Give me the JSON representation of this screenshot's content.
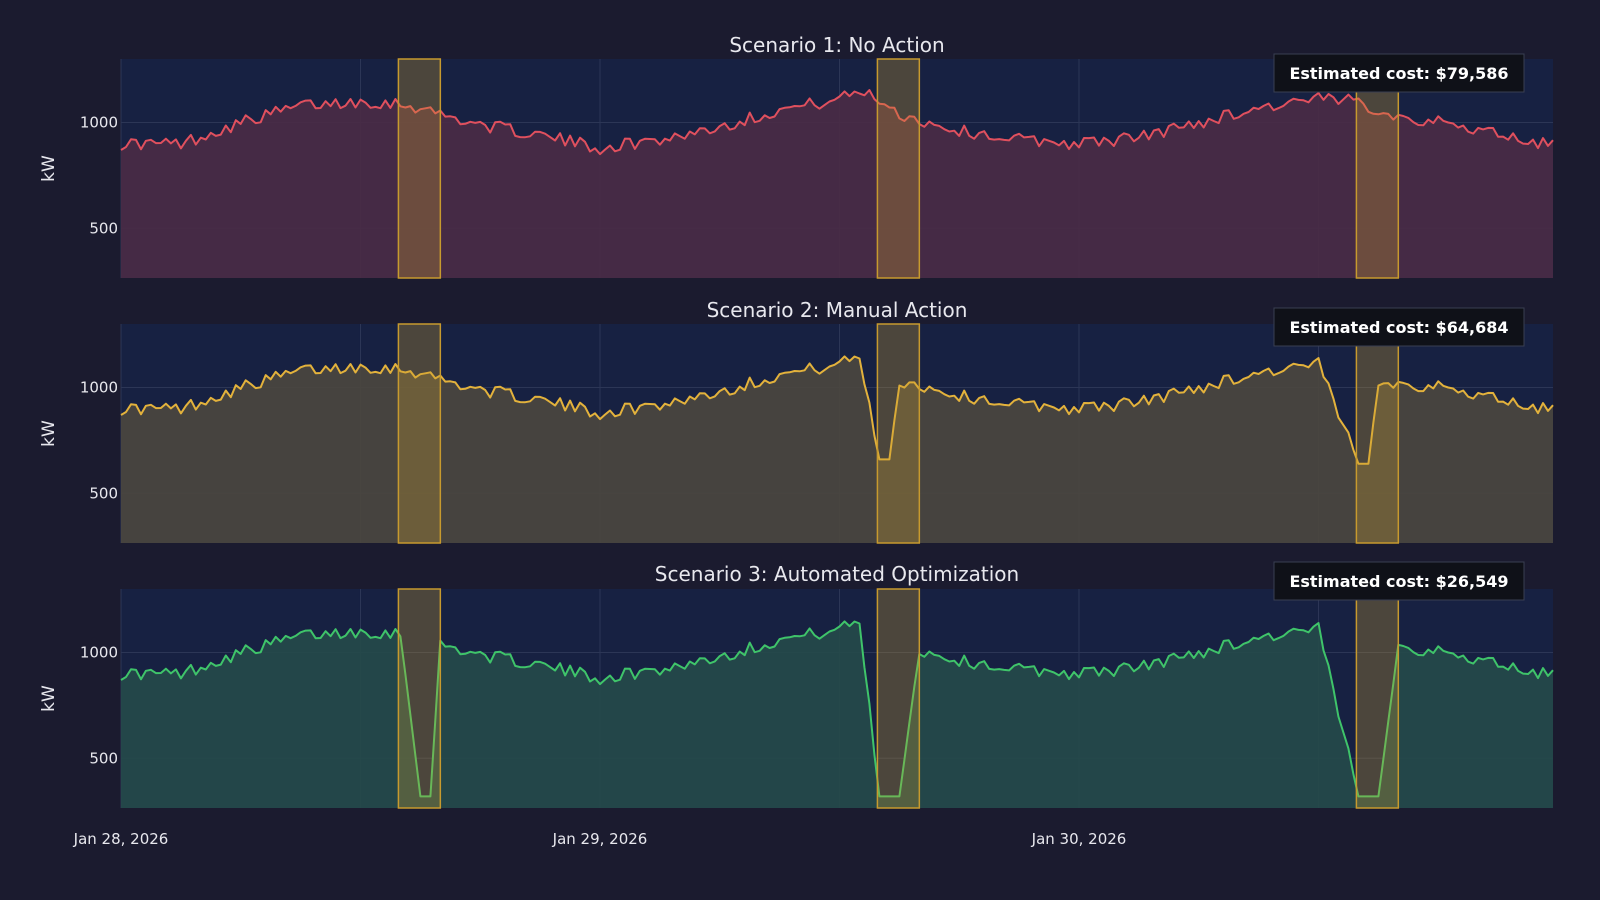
{
  "chart_data": [
    {
      "type": "area",
      "title": "Scenario 1: No Action",
      "ylabel": "kW",
      "ylim": [
        265,
        1300
      ],
      "yticks": [
        500,
        1000
      ],
      "color": "#e0505e",
      "fill": "#4a2b45",
      "annotation": "Estimated cost: $79,586",
      "series": [
        {
          "x": [
            "Jan 28, 2026 00:00",
            "Jan 28, 2026 03:00",
            "Jan 28, 2026 06:00",
            "Jan 28, 2026 09:00",
            "Jan 28, 2026 12:00",
            "Jan 28, 2026 14:00",
            "Jan 28, 2026 15:00",
            "Jan 28, 2026 16:00",
            "Jan 28, 2026 18:00",
            "Jan 28, 2026 21:00",
            "Jan 29, 2026 00:00",
            "Jan 29, 2026 03:00",
            "Jan 29, 2026 06:00",
            "Jan 29, 2026 09:00",
            "Jan 29, 2026 12:00",
            "Jan 29, 2026 13:00",
            "Jan 29, 2026 14:00",
            "Jan 29, 2026 15:00",
            "Jan 29, 2026 16:00",
            "Jan 29, 2026 18:00",
            "Jan 29, 2026 21:00",
            "Jan 30, 2026 00:00",
            "Jan 30, 2026 03:00",
            "Jan 30, 2026 06:00",
            "Jan 30, 2026 09:00",
            "Jan 30, 2026 12:00",
            "Jan 30, 2026 14:00",
            "Jan 30, 2026 15:00",
            "Jan 30, 2026 16:00",
            "Jan 30, 2026 18:00",
            "Jan 30, 2026 21:00",
            "Jan 30, 2026 23:00"
          ],
          "values": [
            900,
            900,
            1000,
            1080,
            1100,
            1090,
            1070,
            1040,
            990,
            940,
            880,
            920,
            980,
            1060,
            1110,
            1150,
            1110,
            1040,
            1010,
            960,
            920,
            900,
            930,
            1000,
            1070,
            1110,
            1100,
            1060,
            1030,
            1000,
            950,
            900
          ]
        }
      ]
    },
    {
      "type": "area",
      "title": "Scenario 2: Manual Action",
      "ylabel": "kW",
      "ylim": [
        265,
        1300
      ],
      "yticks": [
        500,
        1000
      ],
      "color": "#e3b23c",
      "fill": "#4b463f",
      "annotation": "Estimated cost: $64,684",
      "series": [
        {
          "x": [
            "Jan 28, 2026 00:00",
            "Jan 28, 2026 03:00",
            "Jan 28, 2026 06:00",
            "Jan 28, 2026 09:00",
            "Jan 28, 2026 12:00",
            "Jan 28, 2026 14:00",
            "Jan 28, 2026 15:00",
            "Jan 28, 2026 16:00",
            "Jan 28, 2026 18:00",
            "Jan 28, 2026 21:00",
            "Jan 29, 2026 00:00",
            "Jan 29, 2026 03:00",
            "Jan 29, 2026 06:00",
            "Jan 29, 2026 09:00",
            "Jan 29, 2026 12:00",
            "Jan 29, 2026 13:00",
            "Jan 29, 2026 14:00",
            "Jan 29, 2026 14:30",
            "Jan 29, 2026 15:00",
            "Jan 29, 2026 16:00",
            "Jan 29, 2026 18:00",
            "Jan 29, 2026 21:00",
            "Jan 30, 2026 00:00",
            "Jan 30, 2026 03:00",
            "Jan 30, 2026 06:00",
            "Jan 30, 2026 09:00",
            "Jan 30, 2026 12:00",
            "Jan 30, 2026 14:00",
            "Jan 30, 2026 14:30",
            "Jan 30, 2026 15:00",
            "Jan 30, 2026 16:00",
            "Jan 30, 2026 18:00",
            "Jan 30, 2026 21:00",
            "Jan 30, 2026 23:00"
          ],
          "values": [
            900,
            900,
            1000,
            1080,
            1100,
            1090,
            1070,
            1040,
            990,
            940,
            880,
            920,
            980,
            1060,
            1110,
            1150,
            660,
            660,
            1030,
            1010,
            960,
            920,
            900,
            930,
            1000,
            1070,
            1110,
            640,
            640,
            1030,
            1020,
            1000,
            950,
            900
          ]
        }
      ]
    },
    {
      "type": "area",
      "title": "Scenario 3: Automated Optimization",
      "ylabel": "kW",
      "ylim": [
        265,
        1300
      ],
      "yticks": [
        500,
        1000
      ],
      "color": "#3fc46a",
      "fill": "#254a4a",
      "annotation": "Estimated cost: $26,549",
      "series": [
        {
          "x": [
            "Jan 28, 2026 00:00",
            "Jan 28, 2026 03:00",
            "Jan 28, 2026 06:00",
            "Jan 28, 2026 09:00",
            "Jan 28, 2026 12:00",
            "Jan 28, 2026 14:00",
            "Jan 28, 2026 15:00",
            "Jan 28, 2026 15:30",
            "Jan 28, 2026 16:00",
            "Jan 28, 2026 18:00",
            "Jan 28, 2026 21:00",
            "Jan 29, 2026 00:00",
            "Jan 29, 2026 03:00",
            "Jan 29, 2026 06:00",
            "Jan 29, 2026 09:00",
            "Jan 29, 2026 12:00",
            "Jan 29, 2026 13:00",
            "Jan 29, 2026 14:00",
            "Jan 29, 2026 15:00",
            "Jan 29, 2026 16:00",
            "Jan 29, 2026 18:00",
            "Jan 29, 2026 21:00",
            "Jan 30, 2026 00:00",
            "Jan 30, 2026 03:00",
            "Jan 30, 2026 06:00",
            "Jan 30, 2026 09:00",
            "Jan 30, 2026 12:00",
            "Jan 30, 2026 14:00",
            "Jan 30, 2026 15:00",
            "Jan 30, 2026 16:00",
            "Jan 30, 2026 18:00",
            "Jan 30, 2026 21:00",
            "Jan 30, 2026 23:00"
          ],
          "values": [
            900,
            900,
            1000,
            1080,
            1100,
            1090,
            320,
            320,
            1040,
            990,
            940,
            880,
            920,
            980,
            1060,
            1110,
            1150,
            320,
            320,
            1010,
            960,
            920,
            900,
            930,
            1000,
            1070,
            1110,
            320,
            320,
            1030,
            1000,
            950,
            900
          ]
        }
      ]
    }
  ],
  "x_axis": {
    "range": [
      "Jan 28, 2026 00:00",
      "Jan 30, 2026 23:45"
    ],
    "tick_labels": [
      "Jan 28, 2026",
      "Jan 29, 2026",
      "Jan 30, 2026"
    ],
    "tick_values": [
      "Jan 28, 2026 00:00",
      "Jan 29, 2026 00:00",
      "Jan 30, 2026 00:00"
    ]
  },
  "highlight_windows": [
    [
      "Jan 28, 2026 14:00",
      "Jan 28, 2026 16:00"
    ],
    [
      "Jan 29, 2026 14:00",
      "Jan 29, 2026 16:00"
    ],
    [
      "Jan 30, 2026 14:00",
      "Jan 30, 2026 16:00"
    ]
  ],
  "colors": {
    "page_background": "#1b1b2f",
    "plot_background": "#172142",
    "grid": "#2c3656",
    "highlight_fill": "#c79a2e",
    "highlight_stroke": "#c79a2e",
    "annotation_background": "#0f1118",
    "annotation_border": "#3a3f52"
  }
}
